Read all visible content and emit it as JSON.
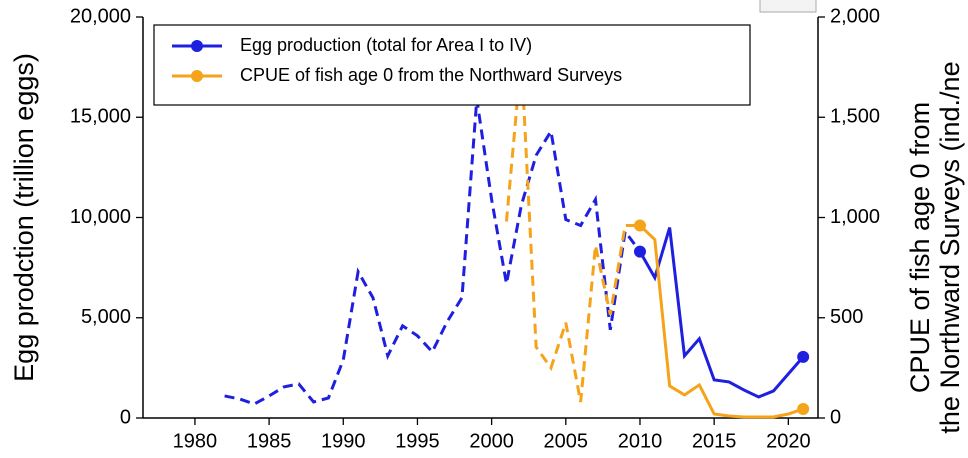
{
  "chart_data": {
    "type": "line",
    "y_label": "Egg prodction (trillion eggs)",
    "y2_label_lines": [
      "CPUE of fish age 0 from",
      "the Northward Surveys (ind./ne"
    ],
    "xlim": [
      1976.5,
      2022
    ],
    "xticks": [
      1980,
      1985,
      1990,
      1995,
      2000,
      2005,
      2010,
      2015,
      2020
    ],
    "ylim": [
      0,
      20000
    ],
    "yticks": [
      0,
      {
        "value": 5000,
        "label": "5,000"
      },
      {
        "value": 10000,
        "label": "10,000"
      },
      {
        "value": 15000,
        "label": "15,000"
      },
      {
        "value": 20000,
        "label": "20,000"
      }
    ],
    "y2lim": [
      0,
      2000
    ],
    "y2ticks": [
      0,
      500,
      {
        "value": 1000,
        "label": "1,000"
      },
      {
        "value": 1500,
        "label": "1,500"
      },
      {
        "value": 2000,
        "label": "2,000"
      }
    ],
    "solid_from": 2010,
    "series": [
      {
        "name": "Egg production (total for Area I to IV)",
        "color": "#1f1fe0",
        "axis": "y",
        "x": [
          1982,
          1983,
          1984,
          1985,
          1986,
          1987,
          1988,
          1989,
          1990,
          1991,
          1992,
          1993,
          1994,
          1995,
          1996,
          1997,
          1998,
          1999,
          2000,
          2001,
          2002,
          2003,
          2004,
          2005,
          2006,
          2007,
          2008,
          2009,
          2010,
          2011,
          2012,
          2013,
          2014,
          2015,
          2016,
          2017,
          2018,
          2019,
          2021
        ],
        "values": [
          1100,
          950,
          700,
          1100,
          1550,
          1700,
          800,
          1000,
          2900,
          7300,
          6000,
          3100,
          4600,
          4100,
          3300,
          4800,
          6000,
          15900,
          10900,
          6700,
          10600,
          13100,
          14300,
          9900,
          9600,
          10900,
          4400,
          9300,
          8300,
          7000,
          9500,
          3100,
          3950,
          1900,
          1800,
          1400,
          1050,
          1350,
          3050
        ],
        "marker_x": [
          2010,
          2021
        ]
      },
      {
        "name": "CPUE of fish age 0 from the Northward Surveys",
        "color": "#f5a31a",
        "axis": "y2",
        "x": [
          2001,
          2002,
          2003,
          2004,
          2005,
          2006,
          2007,
          2008,
          2009,
          2010,
          2011,
          2012,
          2013,
          2014,
          2015,
          2016,
          2017,
          2018,
          2019,
          2020,
          2021
        ],
        "values": [
          980,
          1800,
          354,
          250,
          475,
          80,
          860,
          515,
          960,
          960,
          890,
          160,
          115,
          165,
          20,
          10,
          5,
          5,
          5,
          20,
          45
        ],
        "marker_x": [
          2010,
          2021
        ]
      }
    ]
  }
}
